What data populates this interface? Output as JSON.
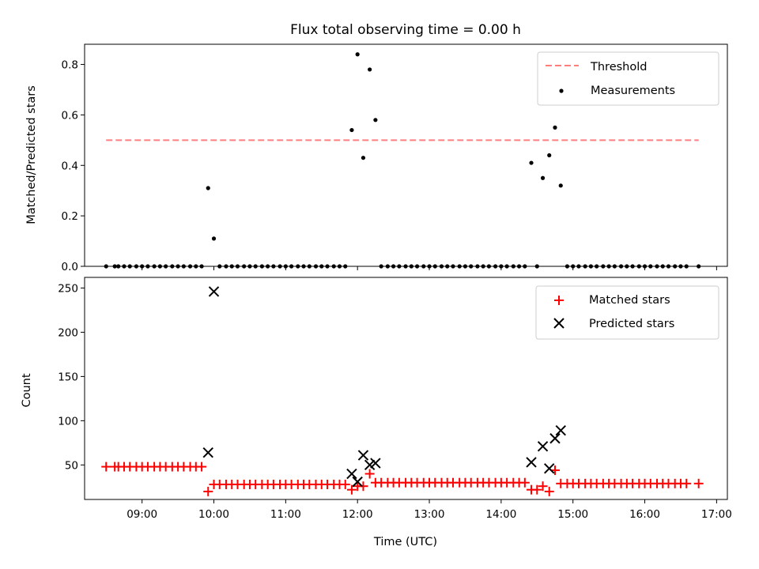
{
  "chart_data": [
    {
      "type": "scatter",
      "title": "Flux total observing time = 0.00 h",
      "xlabel": "",
      "ylabel": "Matched/Predicted stars",
      "xlim": [
        8.2,
        17.15
      ],
      "ylim": [
        0.0,
        0.88
      ],
      "yticks": [
        0.0,
        0.2,
        0.4,
        0.6,
        0.8
      ],
      "ytick_labels": [
        "0.0",
        "0.2",
        "0.4",
        "0.6",
        "0.8"
      ],
      "xticks": [
        9,
        10,
        11,
        12,
        13,
        14,
        15,
        16,
        17
      ],
      "legend": "top-right",
      "threshold": {
        "name": "Threshold",
        "y": 0.5,
        "x_start": 8.5,
        "x_end": 16.75,
        "color": "#ff7f7f",
        "style": "dashed"
      },
      "series": [
        {
          "name": "Measurements",
          "color": "#000000",
          "marker": "dot",
          "x": [
            8.5,
            8.62,
            8.67,
            8.75,
            8.83,
            8.92,
            9.0,
            9.08,
            9.17,
            9.25,
            9.33,
            9.42,
            9.5,
            9.58,
            9.67,
            9.75,
            9.83,
            9.92,
            10.0,
            10.08,
            10.17,
            10.25,
            10.33,
            10.42,
            10.5,
            10.58,
            10.67,
            10.75,
            10.83,
            10.92,
            11.0,
            11.08,
            11.17,
            11.25,
            11.33,
            11.42,
            11.5,
            11.58,
            11.67,
            11.75,
            11.83,
            11.92,
            12.0,
            12.08,
            12.17,
            12.25,
            12.33,
            12.42,
            12.5,
            12.58,
            12.67,
            12.75,
            12.83,
            12.92,
            13.0,
            13.08,
            13.17,
            13.25,
            13.33,
            13.42,
            13.5,
            13.58,
            13.67,
            13.75,
            13.83,
            13.92,
            14.0,
            14.08,
            14.17,
            14.25,
            14.33,
            14.42,
            14.5,
            14.58,
            14.67,
            14.75,
            14.83,
            14.92,
            15.0,
            15.08,
            15.17,
            15.25,
            15.33,
            15.42,
            15.5,
            15.58,
            15.67,
            15.75,
            15.83,
            15.92,
            16.0,
            16.08,
            16.17,
            16.25,
            16.33,
            16.42,
            16.5,
            16.58,
            16.75
          ],
          "y": [
            0.0,
            0.0,
            0.0,
            0.0,
            0.0,
            0.0,
            0.0,
            0.0,
            0.0,
            0.0,
            0.0,
            0.0,
            0.0,
            0.0,
            0.0,
            0.0,
            0.0,
            0.31,
            0.11,
            0.0,
            0.0,
            0.0,
            0.0,
            0.0,
            0.0,
            0.0,
            0.0,
            0.0,
            0.0,
            0.0,
            0.0,
            0.0,
            0.0,
            0.0,
            0.0,
            0.0,
            0.0,
            0.0,
            0.0,
            0.0,
            0.0,
            0.54,
            0.84,
            0.43,
            0.78,
            0.58,
            0.0,
            0.0,
            0.0,
            0.0,
            0.0,
            0.0,
            0.0,
            0.0,
            0.0,
            0.0,
            0.0,
            0.0,
            0.0,
            0.0,
            0.0,
            0.0,
            0.0,
            0.0,
            0.0,
            0.0,
            0.0,
            0.0,
            0.0,
            0.0,
            0.0,
            0.41,
            0.0,
            0.35,
            0.44,
            0.55,
            0.32,
            0.0,
            0.0,
            0.0,
            0.0,
            0.0,
            0.0,
            0.0,
            0.0,
            0.0,
            0.0,
            0.0,
            0.0,
            0.0,
            0.0,
            0.0,
            0.0,
            0.0,
            0.0,
            0.0,
            0.0,
            0.0,
            0.0
          ]
        }
      ]
    },
    {
      "type": "scatter",
      "title": "",
      "xlabel": "Time (UTC)",
      "ylabel": "Count",
      "xlim": [
        8.2,
        17.15
      ],
      "ylim": [
        11,
        262
      ],
      "yticks": [
        50,
        100,
        150,
        200,
        250
      ],
      "xticks": [
        9,
        10,
        11,
        12,
        13,
        14,
        15,
        16,
        17
      ],
      "xtick_labels": [
        "09:00",
        "10:00",
        "11:00",
        "12:00",
        "13:00",
        "14:00",
        "15:00",
        "16:00",
        "17:00"
      ],
      "legend": "top-right",
      "series": [
        {
          "name": "Matched stars",
          "color": "#ff0000",
          "marker": "plus",
          "x": [
            8.5,
            8.62,
            8.67,
            8.75,
            8.83,
            8.92,
            9.0,
            9.08,
            9.17,
            9.25,
            9.33,
            9.42,
            9.5,
            9.58,
            9.67,
            9.75,
            9.83,
            9.92,
            10.0,
            10.08,
            10.17,
            10.25,
            10.33,
            10.42,
            10.5,
            10.58,
            10.67,
            10.75,
            10.83,
            10.92,
            11.0,
            11.08,
            11.17,
            11.25,
            11.33,
            11.42,
            11.5,
            11.58,
            11.67,
            11.75,
            11.83,
            11.92,
            12.0,
            12.08,
            12.17,
            12.25,
            12.33,
            12.42,
            12.5,
            12.58,
            12.67,
            12.75,
            12.83,
            12.92,
            13.0,
            13.08,
            13.17,
            13.25,
            13.33,
            13.42,
            13.5,
            13.58,
            13.67,
            13.75,
            13.83,
            13.92,
            14.0,
            14.08,
            14.17,
            14.25,
            14.33,
            14.42,
            14.5,
            14.58,
            14.67,
            14.75,
            14.83,
            14.92,
            15.0,
            15.08,
            15.17,
            15.25,
            15.33,
            15.42,
            15.5,
            15.58,
            15.67,
            15.75,
            15.83,
            15.92,
            16.0,
            16.08,
            16.17,
            16.25,
            16.33,
            16.42,
            16.5,
            16.58,
            16.75
          ],
          "y": [
            48,
            48,
            48,
            48,
            48,
            48,
            48,
            48,
            48,
            48,
            48,
            48,
            48,
            48,
            48,
            48,
            48,
            20,
            28,
            28,
            28,
            28,
            28,
            28,
            28,
            28,
            28,
            28,
            28,
            28,
            28,
            28,
            28,
            28,
            28,
            28,
            28,
            28,
            28,
            28,
            28,
            22,
            26,
            26,
            40,
            30,
            30,
            30,
            30,
            30,
            30,
            30,
            30,
            30,
            30,
            30,
            30,
            30,
            30,
            30,
            30,
            30,
            30,
            30,
            30,
            30,
            30,
            30,
            30,
            30,
            30,
            22,
            22,
            26,
            20,
            44,
            29,
            29,
            29,
            29,
            29,
            29,
            29,
            29,
            29,
            29,
            29,
            29,
            29,
            29,
            29,
            29,
            29,
            29,
            29,
            29,
            29,
            29,
            29
          ]
        },
        {
          "name": "Predicted stars",
          "color": "#000000",
          "marker": "x",
          "x": [
            9.92,
            10.0,
            11.92,
            12.0,
            12.08,
            12.17,
            12.25,
            14.42,
            14.58,
            14.67,
            14.75,
            14.83
          ],
          "y": [
            64,
            246,
            40,
            31,
            61,
            50,
            52,
            53,
            71,
            46,
            80,
            89
          ]
        }
      ]
    }
  ]
}
